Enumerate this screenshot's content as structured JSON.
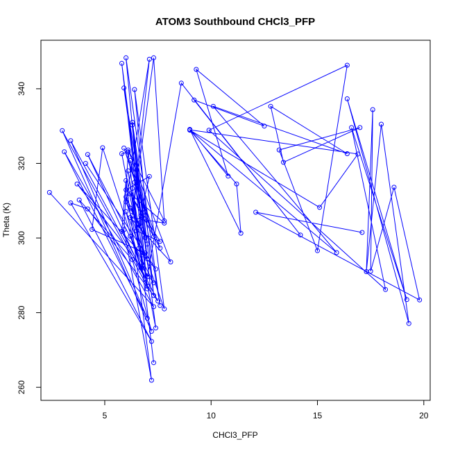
{
  "chart_data": {
    "type": "line",
    "title": "ATOM3 Southbound CHCl3_PFP",
    "xlabel": "CHCl3_PFP",
    "ylabel": "Theta (K)",
    "xlim": [
      2.0,
      20.3
    ],
    "ylim": [
      256.5,
      353.0
    ],
    "x_ticks": [
      5,
      10,
      15,
      20
    ],
    "y_ticks": [
      260,
      280,
      300,
      320,
      340
    ],
    "x_tick_labels": [
      "5",
      "10",
      "15",
      "20"
    ],
    "y_tick_labels": [
      "260",
      "280",
      "300",
      "320",
      "340"
    ],
    "grid": false,
    "legend": "none",
    "series": [
      {
        "color": "#0000ff",
        "marker": "open-circle",
        "points": [
          [
            2.4,
            312.2
          ],
          [
            7.3,
            281.6
          ],
          [
            3.1,
            323.1
          ],
          [
            7.0,
            278.5
          ],
          [
            3.4,
            326.1
          ],
          [
            6.9,
            289.1
          ],
          [
            4.2,
            322.4
          ],
          [
            7.3,
            288.0
          ],
          [
            3.7,
            314.5
          ],
          [
            7.4,
            291.7
          ],
          [
            4.1,
            320.0
          ],
          [
            6.9,
            296.0
          ],
          [
            4.4,
            302.3
          ],
          [
            4.9,
            324.2
          ],
          [
            7.0,
            287.1
          ],
          [
            3.0,
            328.8
          ],
          [
            7.2,
            275.0
          ],
          [
            6.3,
            294.2
          ],
          [
            3.8,
            310.2
          ],
          [
            7.2,
            272.3
          ],
          [
            3.4,
            309.4
          ],
          [
            4.2,
            307.8
          ],
          [
            7.5,
            283.1
          ],
          [
            5.8,
            301.8
          ],
          [
            6.0,
            315.4
          ],
          [
            7.2,
            261.9
          ],
          [
            5.9,
            302.2
          ],
          [
            6.1,
            323.1
          ],
          [
            7.3,
            266.6
          ],
          [
            6.1,
            323.0
          ],
          [
            5.8,
            322.6
          ],
          [
            7.4,
            275.9
          ],
          [
            5.8,
            346.8
          ],
          [
            7.0,
            286.4
          ],
          [
            6.0,
            348.3
          ],
          [
            7.6,
            281.9
          ],
          [
            5.9,
            340.2
          ],
          [
            7.0,
            294.4
          ],
          [
            6.3,
            330.3
          ],
          [
            7.3,
            284.6
          ],
          [
            6.4,
            339.8
          ],
          [
            7.8,
            281.0
          ],
          [
            6.0,
            309.7
          ],
          [
            7.1,
            347.9
          ],
          [
            6.3,
            306.1
          ],
          [
            7.3,
            348.3
          ],
          [
            7.8,
            304.6
          ],
          [
            6.1,
            323.6
          ],
          [
            8.1,
            293.6
          ],
          [
            6.2,
            305.5
          ],
          [
            7.8,
            304.0
          ],
          [
            6.0,
            312.9
          ],
          [
            7.1,
            316.5
          ],
          [
            6.5,
            301.9
          ],
          [
            7.6,
            299.1
          ],
          [
            6.2,
            311.8
          ],
          [
            7.6,
            297.3
          ],
          [
            5.9,
            324.1
          ],
          [
            6.9,
            306.9
          ],
          [
            6.3,
            331.0
          ],
          [
            6.7,
            306.0
          ],
          [
            6.4,
            314.9
          ],
          [
            7.3,
            300.4
          ],
          [
            6.2,
            320.8
          ],
          [
            7.0,
            298.4
          ],
          [
            6.5,
            318.2
          ],
          [
            6.7,
            303.2
          ],
          [
            6.2,
            308.0
          ],
          [
            6.9,
            300.1
          ],
          [
            6.0,
            311.0
          ],
          [
            6.8,
            292.8
          ],
          [
            6.1,
            318.0
          ],
          [
            6.6,
            297.2
          ],
          [
            6.3,
            313.3
          ],
          [
            6.8,
            295.5
          ],
          [
            6.0,
            307.1
          ],
          [
            6.7,
            292.0
          ],
          [
            6.2,
            300.5
          ],
          [
            7.0,
            289.6
          ],
          [
            8.6,
            341.5
          ],
          [
            14.2,
            300.8
          ],
          [
            9.2,
            337.0
          ],
          [
            12.5,
            330.0
          ],
          [
            9.3,
            345.2
          ],
          [
            10.8,
            316.6
          ],
          [
            9.0,
            329.1
          ],
          [
            11.4,
            301.3
          ],
          [
            11.2,
            314.5
          ],
          [
            9.0,
            328.9
          ],
          [
            15.1,
            308.2
          ],
          [
            16.9,
            322.5
          ],
          [
            9.0,
            329.0
          ],
          [
            15.9,
            296.1
          ],
          [
            10.1,
            335.3
          ],
          [
            16.4,
            322.6
          ],
          [
            12.8,
            335.3
          ],
          [
            13.4,
            320.3
          ],
          [
            17.0,
            329.6
          ],
          [
            13.2,
            323.6
          ],
          [
            15.0,
            296.6
          ],
          [
            16.4,
            346.3
          ],
          [
            9.9,
            328.9
          ],
          [
            18.2,
            286.2
          ],
          [
            16.6,
            329.6
          ],
          [
            19.2,
            283.5
          ],
          [
            16.4,
            337.3
          ],
          [
            19.3,
            277.1
          ],
          [
            18.0,
            330.5
          ],
          [
            17.3,
            291.0
          ],
          [
            17.6,
            334.4
          ],
          [
            17.5,
            291.1
          ],
          [
            18.6,
            313.6
          ],
          [
            19.8,
            283.4
          ],
          [
            12.1,
            306.9
          ],
          [
            17.1,
            301.5
          ]
        ]
      }
    ]
  }
}
